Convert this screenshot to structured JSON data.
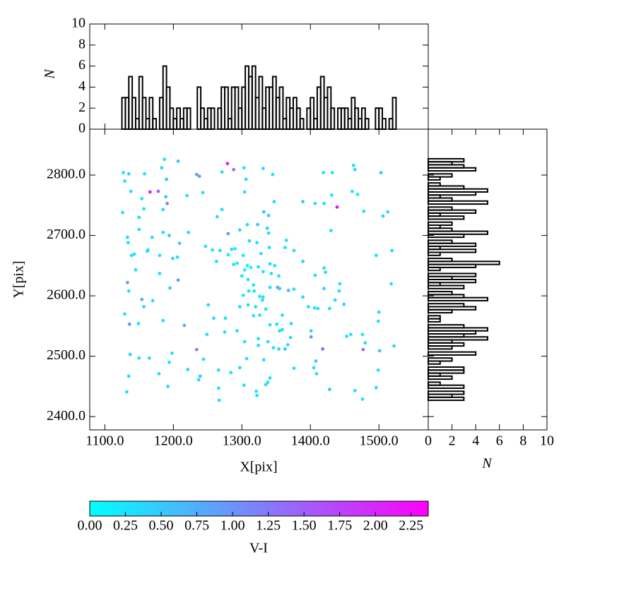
{
  "chart_data": [
    {
      "type": "scatter",
      "xlabel": "X[pix]",
      "ylabel": "Y[pix]",
      "xlim": [
        1078,
        1572
      ],
      "ylim": [
        2378,
        2876
      ],
      "xticks": [
        {
          "value": 1100,
          "label": "1100.0"
        },
        {
          "value": 1200,
          "label": "1200.0"
        },
        {
          "value": 1300,
          "label": "1300.0"
        },
        {
          "value": 1400,
          "label": "1400.0"
        },
        {
          "value": 1500,
          "label": "1500.0"
        }
      ],
      "yticks": [
        {
          "value": 2400,
          "label": "2400.0"
        },
        {
          "value": 2500,
          "label": "2500.0"
        },
        {
          "value": 2600,
          "label": "2600.0"
        },
        {
          "value": 2700,
          "label": "2700.0"
        },
        {
          "value": 2800,
          "label": "2800.0"
        }
      ],
      "cmap": [
        "#00ffff",
        "#ff00ff"
      ],
      "colorbar": {
        "label": "V-I",
        "lim": [
          0,
          2.37
        ],
        "ticks": [
          {
            "value": 0,
            "label": "0.00"
          },
          {
            "value": 0.25,
            "label": "0.25"
          },
          {
            "value": 0.5,
            "label": "0.50"
          },
          {
            "value": 0.75,
            "label": "0.75"
          },
          {
            "value": 1,
            "label": "1.00"
          },
          {
            "value": 1.25,
            "label": "1.25"
          },
          {
            "value": 1.5,
            "label": "1.50"
          },
          {
            "value": 1.75,
            "label": "1.75"
          },
          {
            "value": 2,
            "label": "2.00"
          },
          {
            "value": 2.25,
            "label": "2.25"
          }
        ]
      },
      "x": [
        1187,
        1207,
        1127,
        1135,
        1158,
        1190,
        1183,
        1234,
        1238,
        1271,
        1279,
        1288,
        1303,
        1331,
        1345,
        1419,
        1432,
        1463,
        1465,
        1503,
        1129,
        1138,
        1166,
        1178,
        1191,
        1189,
        1154,
        1157,
        1185,
        1220,
        1243,
        1304,
        1271,
        1306,
        1347,
        1332,
        1339,
        1389,
        1407,
        1420,
        1431,
        1439,
        1461,
        1469,
        1478,
        1513,
        1506,
        1126,
        1133,
        1150,
        1150,
        1185,
        1169,
        1194,
        1162,
        1134,
        1139,
        1143,
        1163,
        1180,
        1199,
        1222,
        1209,
        1206,
        1247,
        1264,
        1257,
        1268,
        1263,
        1280,
        1297,
        1285,
        1280,
        1290,
        1302,
        1308,
        1323,
        1337,
        1339,
        1311,
        1322,
        1328,
        1340,
        1365,
        1363,
        1376,
        1389,
        1430,
        1519,
        1496,
        1145,
        1180,
        1133,
        1135,
        1195,
        1207,
        1154,
        1157,
        1170,
        1288,
        1293,
        1304,
        1308,
        1313,
        1300,
        1309,
        1324,
        1331,
        1341,
        1348,
        1343,
        1354,
        1317,
        1310,
        1318,
        1302,
        1326,
        1331,
        1341,
        1352,
        1355,
        1368,
        1376,
        1389,
        1420,
        1422,
        1407,
        1420,
        1443,
        1442,
        1518,
        1129,
        1136,
        1149,
        1185,
        1216,
        1251,
        1259,
        1276,
        1297,
        1309,
        1320,
        1330,
        1335,
        1317,
        1326,
        1341,
        1351,
        1359,
        1372,
        1355,
        1359,
        1397,
        1406,
        1411,
        1428,
        1436,
        1449,
        1500,
        1499,
        1249,
        1275,
        1293,
        1324,
        1304,
        1338,
        1324,
        1346,
        1354,
        1363,
        1367,
        1371,
        1401,
        1401,
        1453,
        1459,
        1476,
        1480,
        1522,
        1418,
        1477,
        1501,
        1137,
        1150,
        1165,
        1198,
        1194,
        1234,
        1244,
        1221,
        1179,
        1135,
        1239,
        1237,
        1266,
        1307,
        1332,
        1297,
        1284,
        1341,
        1338,
        1376,
        1408,
        1405,
        1409,
        1499,
        1132,
        1192,
        1266,
        1303,
        1321,
        1322,
        1335,
        1267,
        1428,
        1465,
        1496,
        1476
      ],
      "y": [
        2826,
        2823,
        2804,
        2802,
        2802,
        2793,
        2812,
        2801,
        2798,
        2805,
        2819,
        2809,
        2812,
        2811,
        2801,
        2804,
        2804,
        2816,
        2809,
        2804,
        2790,
        2773,
        2772,
        2773,
        2753,
        2764,
        2761,
        2744,
        2743,
        2766,
        2771,
        2772,
        2743,
        2793,
        2756,
        2739,
        2733,
        2756,
        2753,
        2753,
        2767,
        2747,
        2773,
        2768,
        2740,
        2739,
        2732,
        2738,
        2697,
        2730,
        2710,
        2705,
        2697,
        2700,
        2674,
        2688,
        2667,
        2669,
        2676,
        2667,
        2662,
        2705,
        2687,
        2664,
        2682,
        2731,
        2676,
        2675,
        2657,
        2703,
        2709,
        2677,
        2668,
        2678,
        2667,
        2718,
        2718,
        2712,
        2704,
        2691,
        2688,
        2670,
        2680,
        2692,
        2680,
        2675,
        2657,
        2708,
        2675,
        2667,
        2643,
        2637,
        2622,
        2608,
        2613,
        2626,
        2594,
        2582,
        2592,
        2652,
        2654,
        2643,
        2650,
        2647,
        2633,
        2627,
        2648,
        2640,
        2653,
        2650,
        2637,
        2633,
        2618,
        2608,
        2608,
        2601,
        2599,
        2598,
        2614,
        2614,
        2612,
        2609,
        2611,
        2598,
        2646,
        2639,
        2634,
        2612,
        2620,
        2608,
        2620,
        2570,
        2553,
        2554,
        2559,
        2551,
        2585,
        2563,
        2563,
        2582,
        2585,
        2582,
        2593,
        2578,
        2567,
        2568,
        2552,
        2553,
        2568,
        2554,
        2542,
        2544,
        2582,
        2580,
        2579,
        2579,
        2593,
        2586,
        2573,
        2558,
        2536,
        2540,
        2542,
        2529,
        2524,
        2524,
        2518,
        2514,
        2512,
        2512,
        2519,
        2531,
        2542,
        2532,
        2533,
        2536,
        2536,
        2522,
        2517,
        2512,
        2511,
        2509,
        2503,
        2497,
        2497,
        2505,
        2490,
        2511,
        2495,
        2478,
        2471,
        2467,
        2467,
        2461,
        2477,
        2496,
        2494,
        2481,
        2473,
        2464,
        2457,
        2480,
        2492,
        2481,
        2471,
        2477,
        2441,
        2450,
        2447,
        2452,
        2442,
        2435,
        2453,
        2427,
        2445,
        2443,
        2448,
        2429
      ],
      "c": [
        0.3,
        0.5,
        0.2,
        0.4,
        0.3,
        0.5,
        0.4,
        0.9,
        0.9,
        0.3,
        2.1,
        1.3,
        0.2,
        0.3,
        0.2,
        0.3,
        0.2,
        0.3,
        0.4,
        0.5,
        0.3,
        0.3,
        2.2,
        1.5,
        1.2,
        0.5,
        0.3,
        0.3,
        0.3,
        0.3,
        0.3,
        0.2,
        0.3,
        0.3,
        0.4,
        0.6,
        0.5,
        0.5,
        0.3,
        0.3,
        0.2,
        2.3,
        0.2,
        0.2,
        0.3,
        0.3,
        0.4,
        0.3,
        0.3,
        0.3,
        0.3,
        0.3,
        0.3,
        0.5,
        0.3,
        0.3,
        0.3,
        0.3,
        0.3,
        0.3,
        0.3,
        0.3,
        0.5,
        0.3,
        0.3,
        0.3,
        0.3,
        0.3,
        0.3,
        1.0,
        0.3,
        0.3,
        0.2,
        0.2,
        0.2,
        0.3,
        0.5,
        0.4,
        0.3,
        0.3,
        0.2,
        0.3,
        0.3,
        0.3,
        0.3,
        0.3,
        0.4,
        0.3,
        0.3,
        0.3,
        0.3,
        0.3,
        0.9,
        0.3,
        0.4,
        0.8,
        0.8,
        0.3,
        0.3,
        0.3,
        0.2,
        0.1,
        0.1,
        0.1,
        0.2,
        0.2,
        0.3,
        0.2,
        0.3,
        0.2,
        0.3,
        0.3,
        0.2,
        0.2,
        0.2,
        0.2,
        0.3,
        0.3,
        0.3,
        0.8,
        0.6,
        0.7,
        0.3,
        0.3,
        0.3,
        0.4,
        0.3,
        0.4,
        0.3,
        0.3,
        0.3,
        0.3,
        1.0,
        0.3,
        0.3,
        0.8,
        0.3,
        0.3,
        0.3,
        0.3,
        0.3,
        0.3,
        0.3,
        0.2,
        0.3,
        0.2,
        0.3,
        0.2,
        0.3,
        0.3,
        0.3,
        0.3,
        0.3,
        0.3,
        0.3,
        0.3,
        0.3,
        0.3,
        0.3,
        0.3,
        0.3,
        0.3,
        0.3,
        0.3,
        0.3,
        0.3,
        0.3,
        0.3,
        0.4,
        0.5,
        0.3,
        0.3,
        0.3,
        1.0,
        0.3,
        0.3,
        0.3,
        0.3,
        0.3,
        1.4,
        1.3,
        0.5,
        0.4,
        0.3,
        0.3,
        0.3,
        0.3,
        1.2,
        0.3,
        0.3,
        0.3,
        0.3,
        0.5,
        0.3,
        0.3,
        0.3,
        0.3,
        0.3,
        0.3,
        0.3,
        0.3,
        0.3,
        0.4,
        0.3,
        0.3,
        0.3,
        0.3,
        0.3,
        0.3,
        0.3,
        0.2,
        0.2,
        0.4,
        0.3,
        0.5,
        0.3,
        0.3,
        0.3
      ]
    },
    {
      "type": "histogram",
      "orientation": "vertical",
      "ylabel": "N",
      "color": "#000000",
      "ylim": [
        0,
        10
      ],
      "yticks": [
        0,
        2,
        4,
        6,
        8,
        10
      ],
      "bins": [
        1125,
        1130,
        1135,
        1140,
        1145,
        1150,
        1155,
        1160,
        1165,
        1170,
        1175,
        1180,
        1185,
        1190,
        1195,
        1200,
        1205,
        1210,
        1215,
        1220,
        1225,
        1230,
        1235,
        1240,
        1245,
        1250,
        1255,
        1260,
        1265,
        1270,
        1275,
        1280,
        1285,
        1290,
        1295,
        1300,
        1305,
        1310,
        1315,
        1320,
        1325,
        1330,
        1335,
        1340,
        1345,
        1350,
        1355,
        1360,
        1365,
        1370,
        1375,
        1380,
        1385,
        1390,
        1395,
        1400,
        1405,
        1410,
        1415,
        1420,
        1425,
        1430,
        1435,
        1440,
        1445,
        1450,
        1455,
        1460,
        1465,
        1470,
        1475,
        1480,
        1485,
        1490,
        1495,
        1500,
        1505,
        1510,
        1515,
        1520,
        1525
      ],
      "counts": [
        3,
        3,
        5,
        3,
        1,
        5,
        3,
        1,
        3,
        1,
        0,
        3,
        6,
        4,
        2,
        1,
        2,
        1,
        2,
        2,
        0,
        0,
        4,
        2,
        1,
        2,
        2,
        0,
        2,
        4,
        4,
        1,
        4,
        4,
        2,
        4,
        6,
        5,
        6,
        3,
        5,
        2,
        4,
        4,
        5,
        3,
        4,
        1,
        3,
        2,
        3,
        2,
        1,
        0,
        2,
        3,
        1,
        4,
        5,
        3,
        4,
        2,
        0,
        2,
        2,
        2,
        1,
        3,
        2,
        1,
        2,
        1,
        0,
        0,
        2,
        2,
        1,
        0,
        1,
        3
      ]
    },
    {
      "type": "histogram",
      "orientation": "horizontal",
      "xlabel": "N",
      "color": "#000000",
      "xlim": [
        0,
        10
      ],
      "xticks": [
        0,
        2,
        4,
        6,
        8,
        10
      ],
      "bins": [
        2427,
        2432,
        2437,
        2442,
        2447,
        2452,
        2457,
        2462,
        2467,
        2472,
        2477,
        2482,
        2487,
        2492,
        2497,
        2502,
        2507,
        2512,
        2517,
        2522,
        2527,
        2532,
        2537,
        2542,
        2547,
        2552,
        2557,
        2562,
        2567,
        2572,
        2577,
        2582,
        2587,
        2592,
        2597,
        2602,
        2607,
        2612,
        2617,
        2622,
        2627,
        2632,
        2637,
        2642,
        2647,
        2652,
        2657,
        2662,
        2667,
        2672,
        2677,
        2682,
        2687,
        2692,
        2697,
        2702,
        2707,
        2712,
        2717,
        2722,
        2727,
        2732,
        2737,
        2742,
        2747,
        2752,
        2757,
        2762,
        2767,
        2772,
        2777,
        2782,
        2787,
        2792,
        2797,
        2802,
        2807,
        2812,
        2817,
        2822,
        2827
      ],
      "counts": [
        3,
        2,
        3,
        0,
        3,
        1,
        0,
        2,
        1,
        3,
        3,
        0,
        1,
        2,
        0,
        4,
        0,
        2,
        3,
        2,
        5,
        3,
        4,
        5,
        3,
        0,
        1,
        1,
        0,
        2,
        4,
        3,
        0,
        5,
        3,
        2,
        0,
        3,
        1,
        4,
        2,
        4,
        0,
        1,
        4,
        6,
        2,
        0,
        1,
        4,
        1,
        4,
        2,
        0,
        3,
        5,
        2,
        1,
        2,
        0,
        3,
        1,
        4,
        2,
        0,
        5,
        2,
        1,
        4,
        5,
        3,
        1,
        0,
        1,
        2,
        0,
        4,
        3,
        2,
        3
      ]
    }
  ]
}
